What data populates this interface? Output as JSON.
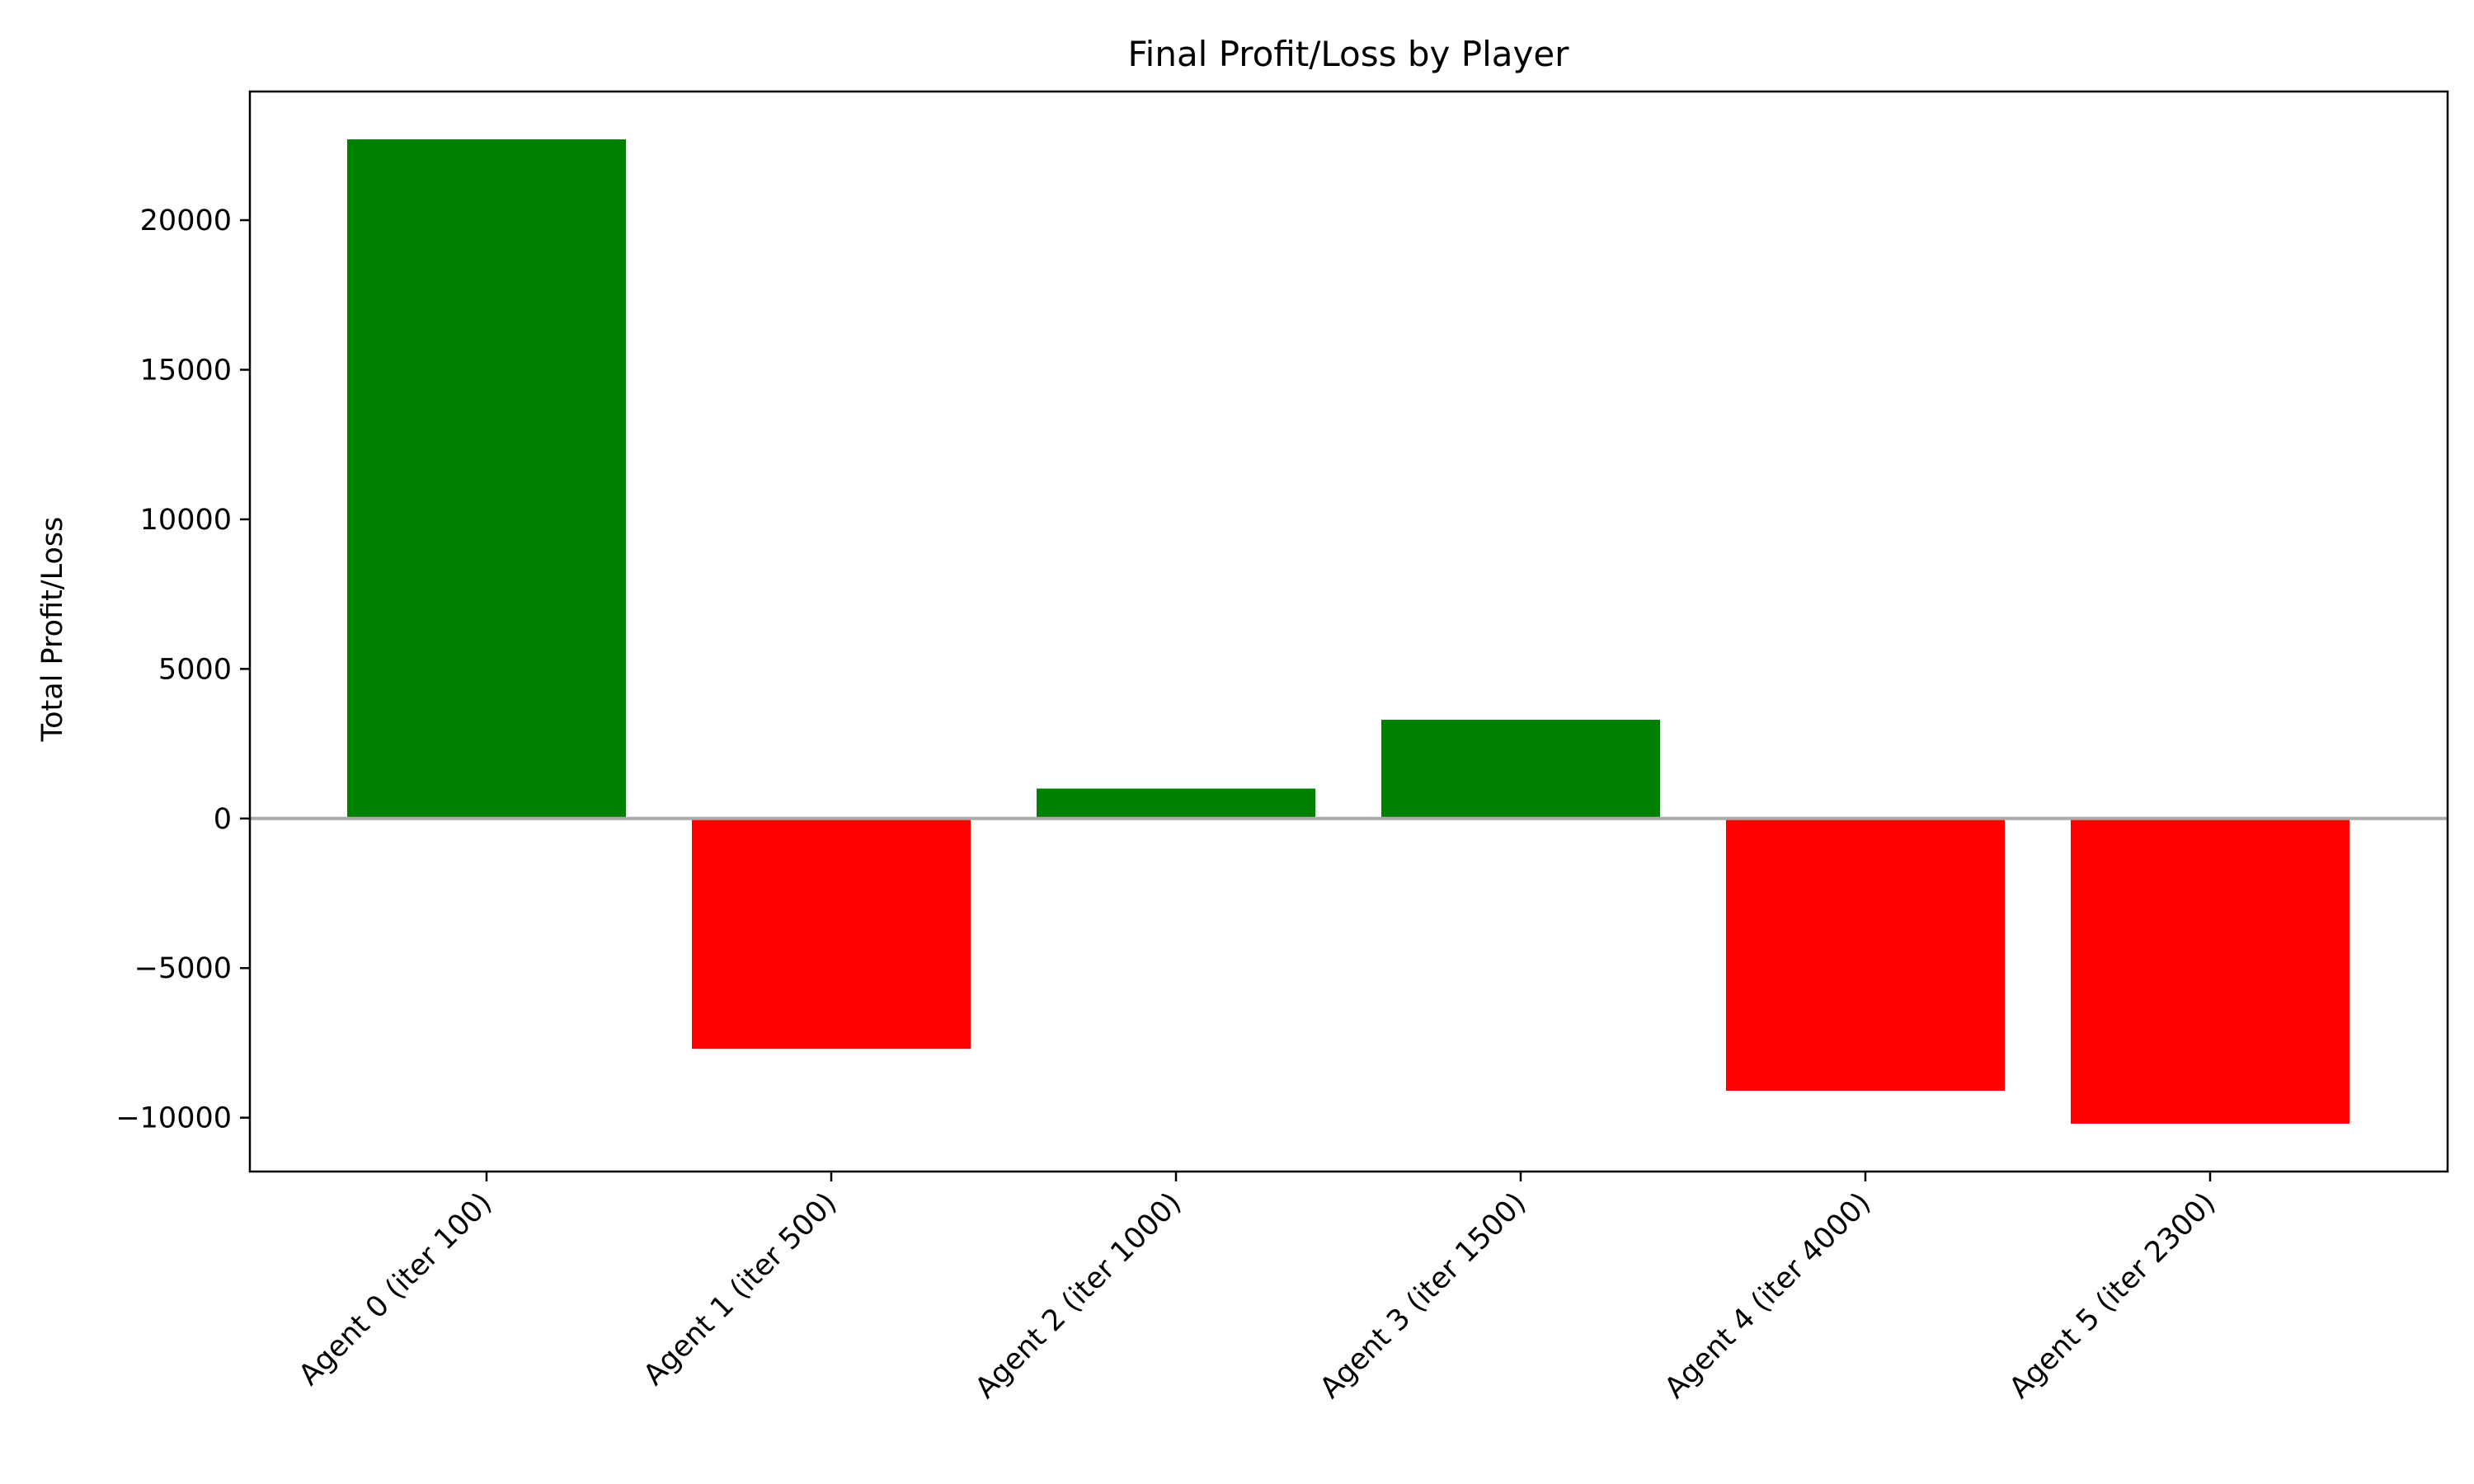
{
  "chart_data": {
    "type": "bar",
    "title": "Final Profit/Loss by Player",
    "xlabel": "",
    "ylabel": "Total Profit/Loss",
    "categories": [
      "Agent 0 (iter 100)",
      "Agent 1 (iter 500)",
      "Agent 2 (iter 1000)",
      "Agent 3 (iter 1500)",
      "Agent 4 (iter 4000)",
      "Agent 5 (iter 2300)"
    ],
    "values": [
      22700,
      -7700,
      1000,
      3300,
      -9100,
      -10200
    ],
    "ylim": [
      -11800,
      24300
    ],
    "yticks": [
      -10000,
      -5000,
      0,
      5000,
      10000,
      15000,
      20000
    ],
    "ytick_labels": [
      "−10000",
      "−5000",
      "0",
      "5000",
      "10000",
      "15000",
      "20000"
    ],
    "colors": {
      "positive": "#008000",
      "negative": "#ff0000",
      "zero_line": "#aaaaaa",
      "axes": "#000000"
    },
    "grid": false,
    "zero_line": true
  }
}
